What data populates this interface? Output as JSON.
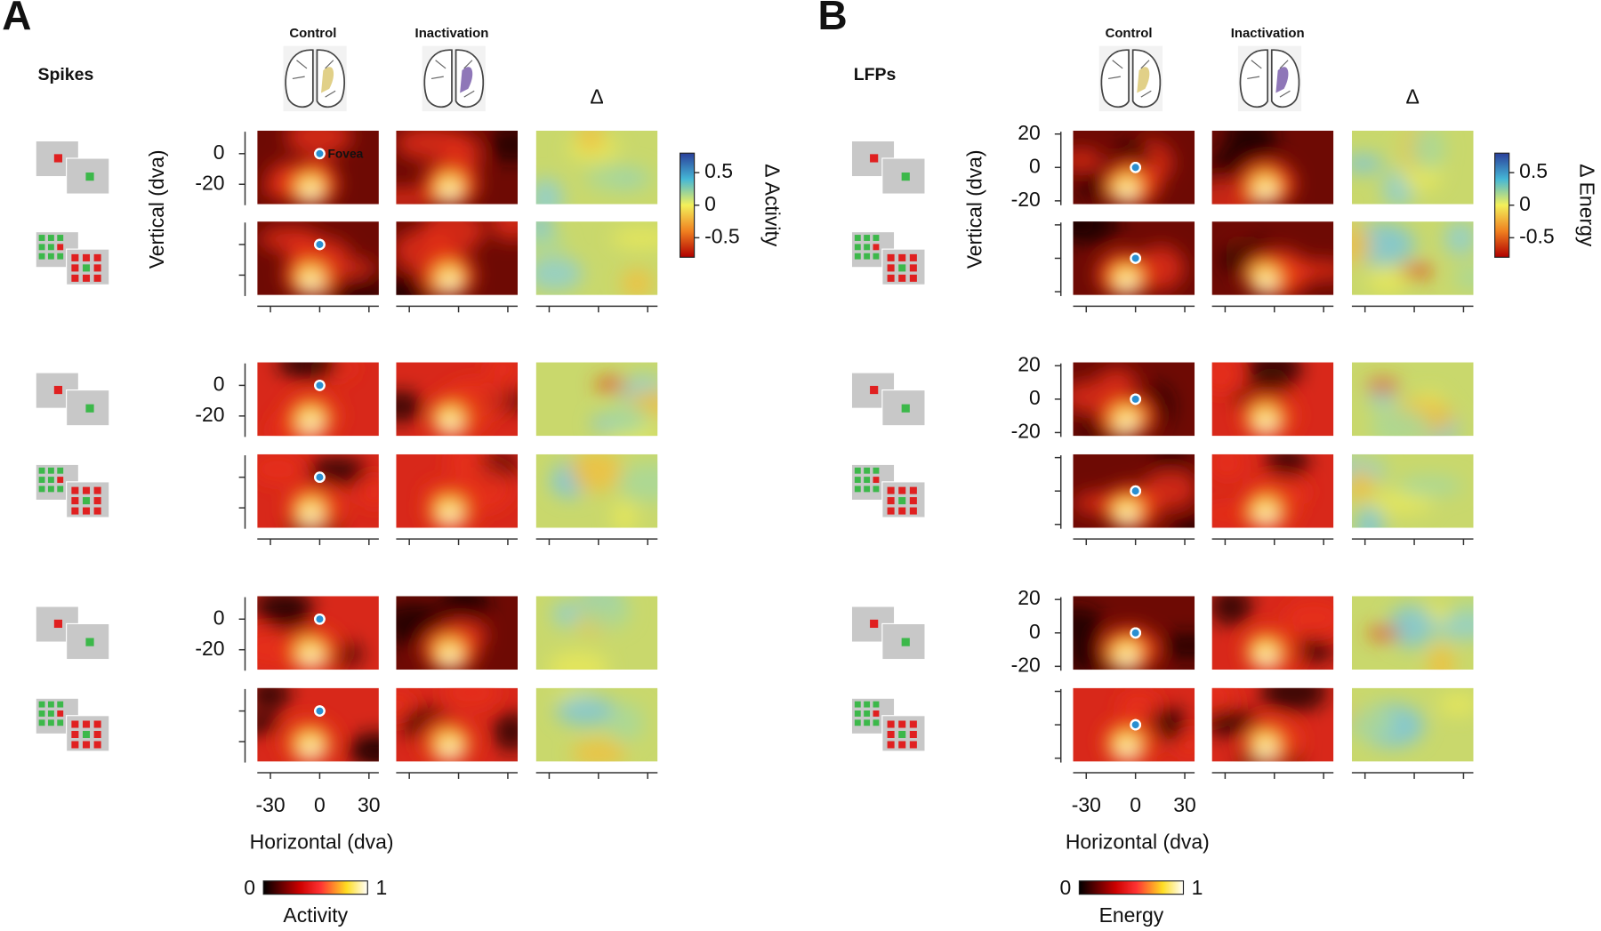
{
  "panels": [
    {
      "letter": "A",
      "signal": "Spikes",
      "columns": [
        "Control",
        "Inactivation",
        "Δ"
      ],
      "fovea": "Fovea",
      "y_label": "Vertical (dva)",
      "x_label": "Horizontal (dva)",
      "xlim": [
        -38,
        36
      ],
      "xticks": [
        -30,
        0,
        30
      ],
      "ylim": [
        -33,
        15
      ],
      "yticks": [
        0,
        -20
      ],
      "delta_colorbar": {
        "label": "Δ Activity",
        "lim": [
          -0.8,
          0.8
        ],
        "ticks": [
          0.5,
          0,
          -0.5
        ]
      },
      "colorbar": {
        "label": "Activity",
        "ticks": [
          0,
          1
        ]
      }
    },
    {
      "letter": "B",
      "signal": "LFPs",
      "columns": [
        "Control",
        "Inactivation",
        "Δ"
      ],
      "y_label": "Vertical (dva)",
      "x_label": "Horizontal (dva)",
      "xlim": [
        -38,
        36
      ],
      "xticks": [
        -30,
        0,
        30
      ],
      "ylim": [
        -22,
        22
      ],
      "yticks": [
        20,
        0,
        -20
      ],
      "delta_colorbar": {
        "label": "Δ Energy",
        "lim": [
          -0.8,
          0.8
        ],
        "ticks": [
          0.5,
          0,
          -0.5
        ]
      },
      "colorbar": {
        "label": "Energy",
        "ticks": [
          0,
          1
        ]
      }
    }
  ]
}
